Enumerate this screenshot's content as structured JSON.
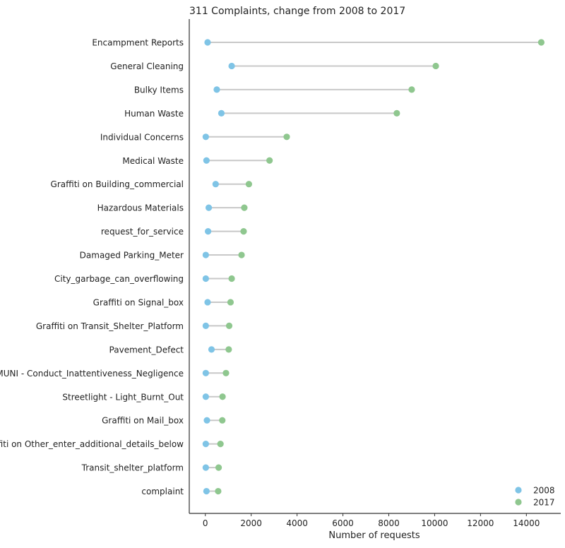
{
  "chart_data": {
    "type": "dumbbell",
    "title": "311 Complaints, change from 2008 to 2017",
    "xlabel": "Number of requests",
    "ylabel": "",
    "xlim": [
      -700,
      15500
    ],
    "xticks": [
      0,
      2000,
      4000,
      6000,
      8000,
      10000,
      12000,
      14000
    ],
    "xtick_labels": [
      "0",
      "2000",
      "4000",
      "6000",
      "8000",
      "10000",
      "12000",
      "14000"
    ],
    "grid": false,
    "legend_position": "bottom-right",
    "categories": [
      "Encampment Reports",
      "General Cleaning",
      "Bulky Items",
      "Human Waste",
      "Individual Concerns",
      "Medical Waste",
      "Graffiti on Building_commercial",
      "Hazardous Materials",
      "request_for_service",
      "Damaged Parking_Meter",
      "City_garbage_can_overflowing",
      "Graffiti on Signal_box",
      "Graffiti on Transit_Shelter_Platform",
      "Pavement_Defect",
      "MUNI - Conduct_Inattentiveness_Negligence",
      "Streetlight - Light_Burnt_Out",
      "Graffiti on Mail_box",
      "Graffiti on Other_enter_additional_details_below",
      "Transit_shelter_platform",
      "complaint"
    ],
    "series": [
      {
        "name": "2008",
        "color": "#7fc4e6",
        "values": [
          100,
          1150,
          500,
          700,
          20,
          50,
          450,
          150,
          120,
          20,
          20,
          100,
          20,
          270,
          20,
          20,
          70,
          20,
          20,
          50
        ]
      },
      {
        "name": "2017",
        "color": "#8fc78f",
        "values": [
          14650,
          10050,
          9000,
          8350,
          3550,
          2800,
          1900,
          1700,
          1670,
          1580,
          1150,
          1100,
          1040,
          1020,
          900,
          750,
          740,
          660,
          580,
          560
        ]
      }
    ],
    "connector_color": "#c8c8c8"
  }
}
